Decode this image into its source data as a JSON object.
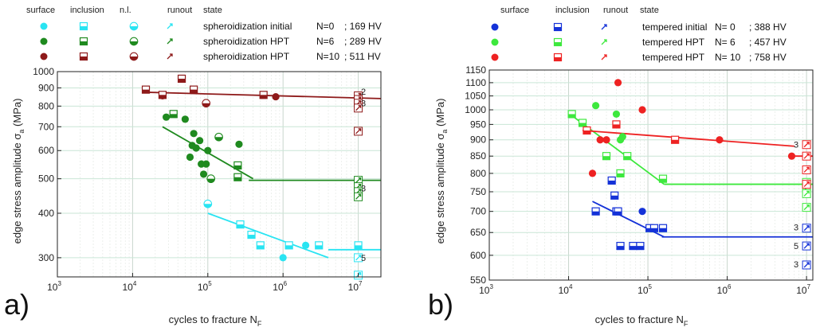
{
  "chart_data": [
    {
      "type": "scatter",
      "panel_label": "a)",
      "xlabel_main": "cycles to fracture N",
      "xlabel_sub": "F",
      "ylabel_main": "edge stress amplitude σ",
      "ylabel_sub": "a",
      "ylabel_unit": " (MPa)",
      "x_scale": "log",
      "y_scale": "log",
      "xlim": [
        1000,
        20000000
      ],
      "ylim": [
        265,
        1000
      ],
      "x_ticks": [
        {
          "v": 1000,
          "base": "10",
          "exp": "3"
        },
        {
          "v": 10000,
          "base": "10",
          "exp": "4"
        },
        {
          "v": 100000,
          "base": "10",
          "exp": "5"
        },
        {
          "v": 1000000,
          "base": "10",
          "exp": "6"
        },
        {
          "v": 10000000,
          "base": "10",
          "exp": "7"
        }
      ],
      "y_ticks": [
        {
          "v": 300,
          "label": "300"
        },
        {
          "v": 400,
          "label": "400"
        },
        {
          "v": 500,
          "label": "500"
        },
        {
          "v": 600,
          "label": "600"
        },
        {
          "v": 700,
          "label": "700"
        },
        {
          "v": 800,
          "label": "800"
        },
        {
          "v": 900,
          "label": "900"
        },
        {
          "v": 1000,
          "label": "1000"
        }
      ],
      "legend_headers": [
        "surface",
        "inclusion",
        "n.l.",
        "runout",
        "state"
      ],
      "legend": [
        {
          "color": "#29e4f2",
          "state": "spheroidization initial",
          "n": "N=0",
          "hv": "; 169 HV"
        },
        {
          "color": "#1f8a1f",
          "state": "spheroidization HPT",
          "n": "N=6",
          "hv": "; 289 HV"
        },
        {
          "color": "#8e1a1a",
          "state": "spheroidization HPT",
          "n": "N=10",
          "hv": "; 511 HV"
        }
      ],
      "series": [
        {
          "name": "spheroidization initial N=0",
          "color": "#29e4f2",
          "surface": [
            [
              1000000,
              300
            ],
            [
              2000000,
              325
            ]
          ],
          "inclusion": [
            [
              270000,
              372
            ],
            [
              380000,
              348
            ],
            [
              500000,
              325
            ],
            [
              1200000,
              325
            ],
            [
              3000000,
              325
            ],
            [
              10000000,
              325
            ]
          ],
          "nl": [
            [
              100000,
              425
            ]
          ],
          "runout": [
            [
              10000000,
              300
            ],
            [
              10000000,
              268
            ]
          ],
          "fit_line": [
            [
              100000,
              400
            ],
            [
              4000000,
              300
            ]
          ],
          "endurance_line": [
            [
              4000000,
              316
            ],
            [
              20000000,
              316
            ]
          ]
        },
        {
          "name": "spheroidization HPT N=6",
          "color": "#1f8a1f",
          "surface": [
            [
              28000,
              745
            ],
            [
              50000,
              735
            ],
            [
              58000,
              575
            ],
            [
              62000,
              620
            ],
            [
              65000,
              670
            ],
            [
              70000,
              610
            ],
            [
              78000,
              640
            ],
            [
              82000,
              550
            ],
            [
              88000,
              515
            ],
            [
              95000,
              550
            ],
            [
              100000,
              600
            ],
            [
              260000,
              625
            ]
          ],
          "inclusion": [
            [
              35000,
              760
            ],
            [
              250000,
              545
            ],
            [
              250000,
              505
            ]
          ],
          "nl": [
            [
              140000,
              655
            ],
            [
              110000,
              500
            ]
          ],
          "runout": [
            [
              10000000,
              495
            ],
            [
              10000000,
              475
            ],
            [
              10000000,
              460
            ],
            [
              10000000,
              445
            ]
          ],
          "runout_count_label": "3",
          "fit_line": [
            [
              25000,
              700
            ],
            [
              400000,
              500
            ]
          ],
          "endurance_line": [
            [
              350000,
              495
            ],
            [
              20000000,
              495
            ]
          ]
        },
        {
          "name": "spheroidization HPT N=10",
          "color": "#8e1a1a",
          "surface": [
            [
              25000,
              855
            ],
            [
              800000,
              850
            ]
          ],
          "inclusion": [
            [
              15000,
              890
            ],
            [
              25000,
              860
            ],
            [
              45000,
              955
            ],
            [
              65000,
              890
            ],
            [
              550000,
              860
            ]
          ],
          "nl": [
            [
              95000,
              815
            ]
          ],
          "runout": [
            [
              10000000,
              855
            ],
            [
              10000000,
              835
            ],
            [
              10000000,
              815
            ],
            [
              10000000,
              790
            ],
            [
              10000000,
              680
            ]
          ],
          "runout_count_labels": [
            "2",
            "3"
          ],
          "fit_line": [
            [
              15000,
              875
            ],
            [
              20000000,
              840
            ]
          ]
        }
      ]
    },
    {
      "type": "scatter",
      "panel_label": "b)",
      "xlabel_main": "cycles to fracture N",
      "xlabel_sub": "F",
      "ylabel_main": "edge stress amplitude σ",
      "ylabel_sub": "a",
      "ylabel_unit": " (MPa)",
      "x_scale": "log",
      "y_scale": "log",
      "xlim": [
        1000,
        12000000
      ],
      "ylim": [
        550,
        1150
      ],
      "x_ticks": [
        {
          "v": 1000,
          "base": "10",
          "exp": "3"
        },
        {
          "v": 10000,
          "base": "10",
          "exp": "4"
        },
        {
          "v": 100000,
          "base": "10",
          "exp": "5"
        },
        {
          "v": 1000000,
          "base": "10",
          "exp": "6"
        },
        {
          "v": 10000000,
          "base": "10",
          "exp": "7"
        }
      ],
      "y_ticks": [
        {
          "v": 550,
          "label": "550"
        },
        {
          "v": 600,
          "label": "600"
        },
        {
          "v": 650,
          "label": "650"
        },
        {
          "v": 700,
          "label": "700"
        },
        {
          "v": 750,
          "label": "750"
        },
        {
          "v": 800,
          "label": "800"
        },
        {
          "v": 850,
          "label": "850"
        },
        {
          "v": 900,
          "label": "900"
        },
        {
          "v": 950,
          "label": "950"
        },
        {
          "v": 1000,
          "label": "1000"
        },
        {
          "v": 1050,
          "label": "1050"
        },
        {
          "v": 1100,
          "label": "1100"
        },
        {
          "v": 1150,
          "label": "1150"
        }
      ],
      "legend_headers": [
        "surface",
        "inclusion",
        "runout",
        "state"
      ],
      "legend": [
        {
          "color": "#1432d8",
          "state": "tempered initial",
          "n": "N= 0",
          "hv": "; 388 HV"
        },
        {
          "color": "#3de83d",
          "state": "tempered HPT",
          "n": "N= 6",
          "hv": "; 457 HV"
        },
        {
          "color": "#ee2222",
          "state": "tempered HPT",
          "n": "N= 10",
          "hv": "; 758 HV"
        }
      ],
      "series": [
        {
          "name": "tempered initial N=0",
          "color": "#1432d8",
          "surface": [
            [
              85000,
              700
            ]
          ],
          "inclusion": [
            [
              22000,
              700
            ],
            [
              35000,
              780
            ],
            [
              38000,
              740
            ],
            [
              40000,
              700
            ],
            [
              42000,
              700
            ],
            [
              45000,
              620
            ],
            [
              65000,
              620
            ],
            [
              80000,
              620
            ],
            [
              105000,
              660
            ],
            [
              120000,
              660
            ],
            [
              155000,
              660
            ]
          ],
          "runout": [
            [
              10000000,
              660
            ],
            [
              10000000,
              620
            ],
            [
              10000000,
              580
            ]
          ],
          "runout_count_labels": [
            "3",
            "5",
            "3"
          ],
          "fit_line": [
            [
              20000,
              725
            ],
            [
              160000,
              640
            ]
          ],
          "endurance_line": [
            [
              150000,
              640
            ],
            [
              12000000,
              640
            ]
          ]
        },
        {
          "name": "tempered HPT N=6",
          "color": "#3de83d",
          "surface": [
            [
              22000,
              1015
            ],
            [
              40000,
              985
            ],
            [
              45000,
              900
            ],
            [
              48000,
              910
            ]
          ],
          "inclusion": [
            [
              11000,
              985
            ],
            [
              15000,
              955
            ],
            [
              30000,
              850
            ],
            [
              45000,
              800
            ],
            [
              55000,
              850
            ],
            [
              155000,
              785
            ]
          ],
          "runout": [
            [
              10000000,
              775
            ],
            [
              10000000,
              760
            ],
            [
              10000000,
              745
            ],
            [
              10000000,
              710
            ]
          ],
          "fit_line": [
            [
              11000,
              980
            ],
            [
              160000,
              770
            ]
          ],
          "endurance_line": [
            [
              160000,
              770
            ],
            [
              12000000,
              770
            ]
          ]
        },
        {
          "name": "tempered HPT N=10",
          "color": "#ee2222",
          "surface": [
            [
              20000,
              800
            ],
            [
              25000,
              900
            ],
            [
              30000,
              900
            ],
            [
              42000,
              1100
            ],
            [
              85000,
              1000
            ],
            [
              800000,
              900
            ],
            [
              6500000,
              850
            ]
          ],
          "inclusion": [
            [
              17000,
              930
            ],
            [
              40000,
              950
            ],
            [
              220000,
              900
            ]
          ],
          "runout": [
            [
              10000000,
              885
            ],
            [
              10000000,
              850
            ],
            [
              10000000,
              810
            ],
            [
              10000000,
              770
            ]
          ],
          "runout_count_label": "3",
          "fit_line": [
            [
              15000,
              930
            ],
            [
              7000000,
              880
            ]
          ],
          "endurance_line": [
            [
              7000000,
              850
            ],
            [
              12000000,
              850
            ]
          ]
        }
      ]
    }
  ]
}
